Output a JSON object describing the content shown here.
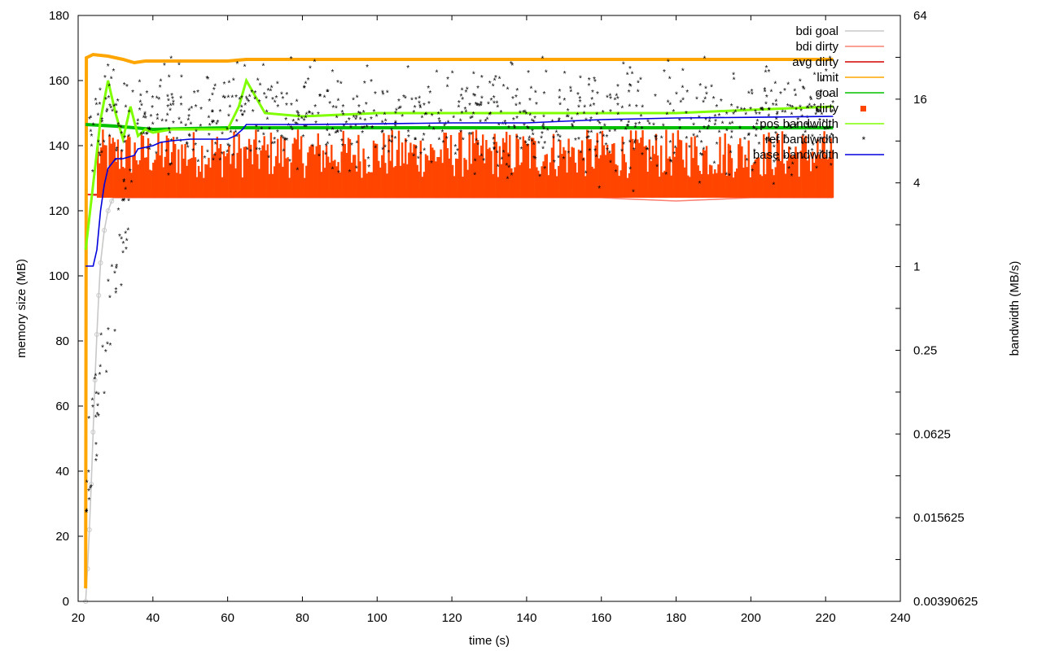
{
  "chart_data": {
    "type": "line",
    "xlabel": "time (s)",
    "ylabel": "memory size (MB)",
    "y2label": "bandwidth (MB/s)",
    "xlim": [
      20,
      240
    ],
    "ylim": [
      0,
      180
    ],
    "y2lim": [
      0.00390625,
      64
    ],
    "y2scale": "log2",
    "x_ticks": [
      "20",
      "40",
      "60",
      "80",
      "100",
      "120",
      "140",
      "160",
      "180",
      "200",
      "220",
      "240"
    ],
    "y_ticks": [
      "0",
      "20",
      "40",
      "60",
      "80",
      "100",
      "120",
      "140",
      "160",
      "180"
    ],
    "y2_ticks": [
      "0.00390625",
      "0.015625",
      "0.0625",
      "0.25",
      "1",
      "4",
      "16",
      "64"
    ],
    "grid": false,
    "legend_position": "top-right",
    "series": [
      {
        "name": "bdi goal",
        "axis": "y",
        "color": "#c8c8c8",
        "style": "linespoints-circle",
        "x": [
          22,
          22.5,
          23,
          23.5,
          24,
          24.5,
          25,
          25.5,
          26,
          27,
          28,
          29,
          30
        ],
        "y": [
          0,
          10,
          22,
          36,
          52,
          68,
          82,
          94,
          104,
          114,
          120,
          123,
          125
        ]
      },
      {
        "name": "bdi dirty",
        "axis": "y",
        "color": "#fa8072",
        "style": "lines-points",
        "x": [
          22,
          30,
          40,
          60,
          80,
          100,
          120,
          140,
          160,
          180,
          200,
          222
        ],
        "y": [
          125,
          124,
          124,
          124,
          124,
          124,
          124,
          124,
          124,
          123,
          124,
          124
        ]
      },
      {
        "name": "avg dirty",
        "axis": "y",
        "color": "#d40000",
        "style": "line",
        "x": [
          22,
          222
        ],
        "y": [
          125,
          125
        ]
      },
      {
        "name": "limit",
        "axis": "y",
        "color": "#ffa500",
        "style": "linespoints-square",
        "x": [
          22,
          22.2,
          24,
          28,
          32,
          35,
          38,
          45,
          60,
          65,
          100,
          150,
          200,
          222
        ],
        "y": [
          4,
          167,
          168,
          167.5,
          166.5,
          165.5,
          166,
          166,
          166,
          166.5,
          166.5,
          166.5,
          166.5,
          166.5
        ]
      },
      {
        "name": "goal",
        "axis": "y",
        "color": "#00c000",
        "style": "linespoints-square",
        "x": [
          22,
          30,
          40,
          60,
          80,
          100,
          120,
          140,
          160,
          180,
          200,
          222
        ],
        "y": [
          146.5,
          146,
          145,
          145.5,
          145.5,
          145.5,
          145.5,
          145.5,
          145.5,
          145.5,
          145.5,
          145.5
        ]
      },
      {
        "name": "dirty",
        "axis": "y",
        "color": "#ff4500",
        "style": "points-square-filled",
        "pattern": "sawtooth",
        "x": [
          22,
          222
        ],
        "y_min": 124,
        "y_max": 145
      },
      {
        "name": "pos bandwidth",
        "axis": "y",
        "color": "#7fff00",
        "style": "linespoints",
        "x": [
          22,
          24,
          26,
          28,
          30,
          32,
          34,
          36,
          38,
          40,
          45,
          50,
          55,
          60,
          63,
          65,
          70,
          80,
          100,
          120,
          140,
          160,
          180,
          200,
          222
        ],
        "y": [
          108,
          128,
          148,
          160,
          150,
          142,
          152,
          143,
          145,
          144,
          145,
          145,
          145,
          145,
          152,
          160,
          150,
          149,
          150,
          150,
          150,
          150,
          150,
          151,
          152
        ]
      },
      {
        "name": "ref bandwidth",
        "axis": "y",
        "color": "#4169e1",
        "style": "points-star",
        "pattern": "scatter-cloud",
        "x": [
          22,
          222
        ],
        "y_center": 148,
        "y_spread": 12
      },
      {
        "name": "base bandwidth",
        "axis": "y",
        "color": "#0000dd",
        "style": "line",
        "x": [
          22,
          24,
          25,
          26,
          27,
          28,
          30,
          32,
          35,
          36,
          40,
          42,
          45,
          50,
          55,
          60,
          62,
          64,
          65,
          80,
          100,
          120,
          140,
          160,
          180,
          200,
          222
        ],
        "y": [
          103,
          103,
          108,
          120,
          128,
          133,
          136,
          136,
          137,
          139,
          140,
          141,
          141.5,
          142,
          142,
          142,
          143,
          145,
          146.5,
          146.5,
          146.7,
          147,
          147,
          148,
          148.5,
          148.7,
          149
        ]
      }
    ]
  }
}
